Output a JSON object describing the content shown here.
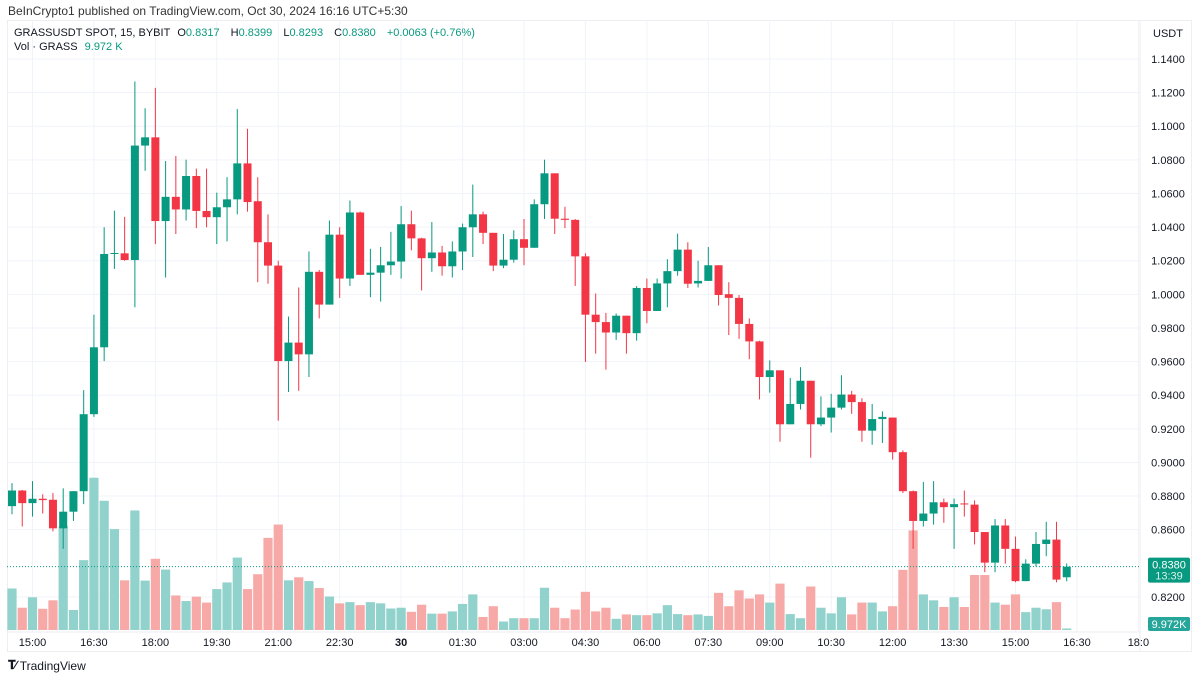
{
  "publish_line": "BeInCrypto1 published on TradingView.com, Oct 30, 2024 16:16 UTC+5:30",
  "legend": {
    "symbol": "GRASSUSDT SPOT, 15, BYBIT",
    "o_label": "O",
    "o": "0.8317",
    "h_label": "H",
    "h": "0.8399",
    "l_label": "L",
    "l": "0.8293",
    "c_label": "C",
    "c": "0.8380",
    "change": "+0.0063 (+0.76%)",
    "vol_label": "Vol · GRASS",
    "vol": "9.972 K"
  },
  "brand": "TradingView",
  "colors": {
    "up": "#089981",
    "down": "#F23645",
    "up_vol": "#92D2CC",
    "down_vol": "#F7A9A7",
    "grid": "#f0f3fa",
    "text": "#131722"
  },
  "chart_data": {
    "type": "candlestick",
    "interval": "15",
    "currency_label": "USDT",
    "ylim": [
      0.8,
      1.15
    ],
    "y_ticks": [
      "1.1400",
      "1.1200",
      "1.1000",
      "1.0800",
      "1.0600",
      "1.0400",
      "1.0200",
      "1.0000",
      "0.9800",
      "0.9600",
      "0.9400",
      "0.9200",
      "0.9000",
      "0.8800",
      "0.8600",
      "0.8200"
    ],
    "x_ticks": [
      "15:00",
      "16:30",
      "18:00",
      "19:30",
      "21:00",
      "22:30",
      "30",
      "01:30",
      "03:00",
      "04:30",
      "06:00",
      "07:30",
      "09:00",
      "10:30",
      "12:00",
      "13:30",
      "15:00",
      "16:30",
      "18:0"
    ],
    "grid": true,
    "last_price_label": "0.8380",
    "countdown_label": "13:39",
    "last_volume_label": "9.972K",
    "volume_unit": "K",
    "candle_fields": [
      "open",
      "high",
      "low",
      "close",
      "volume"
    ],
    "candles": [
      [
        0.874,
        0.8877,
        0.8692,
        0.8833,
        274
      ],
      [
        0.8833,
        0.8836,
        0.8619,
        0.8758,
        147
      ],
      [
        0.8758,
        0.8889,
        0.8678,
        0.8784,
        216
      ],
      [
        0.8784,
        0.8811,
        0.8696,
        0.8776,
        140
      ],
      [
        0.8778,
        0.8818,
        0.859,
        0.8608,
        196
      ],
      [
        0.8608,
        0.8846,
        0.8486,
        0.8707,
        686
      ],
      [
        0.8707,
        0.8829,
        0.8652,
        0.8829,
        132
      ],
      [
        0.8829,
        0.943,
        0.8752,
        0.9287,
        461
      ],
      [
        0.9287,
        0.9879,
        0.9271,
        0.9685,
        1005
      ],
      [
        0.9685,
        1.0399,
        0.9603,
        1.024,
        853
      ],
      [
        1.0242,
        1.0498,
        1.0151,
        1.0246,
        666
      ],
      [
        1.0244,
        1.0461,
        1.02,
        1.0204,
        328
      ],
      [
        1.0204,
        1.1266,
        0.9923,
        1.0885,
        789
      ],
      [
        1.0885,
        1.1107,
        1.0735,
        1.0934,
        326
      ],
      [
        1.0934,
        1.1228,
        1.0299,
        1.0436,
        470
      ],
      [
        1.0436,
        1.0793,
        1.01,
        1.058,
        399
      ],
      [
        1.058,
        1.0823,
        1.0359,
        1.0505,
        228
      ],
      [
        1.0505,
        1.0801,
        1.0439,
        1.0704,
        191
      ],
      [
        1.0704,
        1.0748,
        1.0394,
        1.0496,
        220
      ],
      [
        1.0496,
        1.0748,
        1.0399,
        1.0459,
        181
      ],
      [
        1.0459,
        1.0605,
        1.0299,
        1.0518,
        270
      ],
      [
        1.0518,
        1.0697,
        1.0315,
        1.0565,
        314
      ],
      [
        1.0565,
        1.1102,
        1.0476,
        1.0779,
        478
      ],
      [
        1.0779,
        1.0985,
        1.0492,
        1.0549,
        270
      ],
      [
        1.0554,
        1.0697,
        1.0072,
        1.031,
        368
      ],
      [
        1.031,
        1.0476,
        1.0063,
        1.0171,
        608
      ],
      [
        1.0171,
        1.02,
        0.9249,
        0.9603,
        696
      ],
      [
        0.9603,
        0.9868,
        0.9419,
        0.9713,
        328
      ],
      [
        0.9713,
        1.0041,
        0.9426,
        0.9643,
        348
      ],
      [
        0.9643,
        1.0255,
        0.9508,
        1.0134,
        323
      ],
      [
        1.0134,
        1.0145,
        0.9857,
        0.9939,
        277
      ],
      [
        0.9939,
        1.0439,
        0.9939,
        1.0355,
        221
      ],
      [
        1.0355,
        1.0399,
        0.9979,
        1.0094,
        176
      ],
      [
        1.0094,
        1.0558,
        1.005,
        1.0487,
        184
      ],
      [
        1.0487,
        1.0492,
        1.0116,
        1.0116,
        164
      ],
      [
        1.0116,
        1.0271,
        0.9983,
        1.0129,
        184
      ],
      [
        1.0129,
        1.0282,
        0.9957,
        1.0173,
        176
      ],
      [
        1.0173,
        1.0372,
        1.0116,
        1.0195,
        142
      ],
      [
        1.0195,
        1.0525,
        1.0094,
        1.0417,
        147
      ],
      [
        1.0417,
        1.0498,
        1.0262,
        1.0333,
        120
      ],
      [
        1.0333,
        1.0337,
        1.0023,
        1.0215,
        167
      ],
      [
        1.0215,
        1.043,
        1.0134,
        1.0249,
        108
      ],
      [
        1.0249,
        1.0288,
        1.0111,
        1.0167,
        108
      ],
      [
        1.0167,
        1.0315,
        1.01,
        1.0255,
        123
      ],
      [
        1.0255,
        1.0421,
        1.0145,
        1.0399,
        172
      ],
      [
        1.0399,
        1.0653,
        1.0222,
        1.0476,
        235
      ],
      [
        1.0476,
        1.0492,
        1.0299,
        1.0366,
        86
      ],
      [
        1.0366,
        1.0366,
        1.0138,
        1.0171,
        157
      ],
      [
        1.0171,
        1.0359,
        1.0156,
        1.0206,
        56
      ],
      [
        1.0206,
        1.0381,
        1.0189,
        1.0328,
        78
      ],
      [
        1.0328,
        1.0448,
        1.0173,
        1.0277,
        78
      ],
      [
        1.0277,
        1.0565,
        1.0277,
        1.0536,
        78
      ],
      [
        1.0536,
        1.0801,
        1.0448,
        1.072,
        279
      ],
      [
        1.072,
        1.072,
        1.0359,
        1.045,
        147
      ],
      [
        1.045,
        1.0521,
        1.0394,
        1.0443,
        78
      ],
      [
        1.0443,
        1.0448,
        1.005,
        1.0226,
        135
      ],
      [
        1.0226,
        1.0244,
        0.9598,
        0.9879,
        252
      ],
      [
        0.9879,
        1.0005,
        0.9647,
        0.9835,
        123
      ],
      [
        0.9835,
        0.989,
        0.9552,
        0.9773,
        147
      ],
      [
        0.9773,
        0.9886,
        0.9729,
        0.9873,
        74
      ],
      [
        0.9873,
        0.9873,
        0.9647,
        0.9769,
        103
      ],
      [
        0.9769,
        1.0049,
        0.9724,
        1.0038,
        98
      ],
      [
        1.0038,
        1.0094,
        0.9828,
        0.9901,
        98
      ],
      [
        0.9901,
        1.0094,
        0.9901,
        1.0065,
        110
      ],
      [
        1.0065,
        1.0209,
        0.9923,
        1.0138,
        164
      ],
      [
        1.0138,
        1.0361,
        1.0111,
        1.0266,
        105
      ],
      [
        1.0266,
        1.031,
        1.0038,
        1.0063,
        98
      ],
      [
        1.0065,
        1.02,
        1.0041,
        1.008,
        103
      ],
      [
        1.008,
        1.0282,
        1.008,
        1.0173,
        93
      ],
      [
        1.0173,
        1.0173,
        0.9934,
        0.9996,
        245
      ],
      [
        1.0001,
        1.0072,
        0.9758,
        0.9979,
        157
      ],
      [
        0.9979,
        0.9996,
        0.9735,
        0.9824,
        262
      ],
      [
        0.9824,
        0.9857,
        0.9614,
        0.972,
        208
      ],
      [
        0.972,
        0.9724,
        0.9375,
        0.9508,
        235
      ],
      [
        0.9508,
        0.9607,
        0.9415,
        0.9548,
        181
      ],
      [
        0.9548,
        0.9548,
        0.9123,
        0.9227,
        306
      ],
      [
        0.9227,
        0.9503,
        0.9227,
        0.9348,
        105
      ],
      [
        0.9348,
        0.9567,
        0.9315,
        0.9486,
        78
      ],
      [
        0.9486,
        0.9486,
        0.9028,
        0.9227,
        287
      ],
      [
        0.9227,
        0.9393,
        0.9216,
        0.9267,
        147
      ],
      [
        0.9267,
        0.9408,
        0.9178,
        0.9326,
        110
      ],
      [
        0.9326,
        0.9519,
        0.9315,
        0.9404,
        216
      ],
      [
        0.9404,
        0.9426,
        0.9289,
        0.9359,
        103
      ],
      [
        0.9359,
        0.9382,
        0.9123,
        0.9189,
        181
      ],
      [
        0.9189,
        0.9348,
        0.9105,
        0.9258,
        181
      ],
      [
        0.9258,
        0.9304,
        0.9116,
        0.9271,
        123
      ],
      [
        0.9267,
        0.9267,
        0.9017,
        0.9061,
        157
      ],
      [
        0.9061,
        0.9072,
        0.8818,
        0.8829,
        397
      ],
      [
        0.8829,
        0.8833,
        0.8486,
        0.8652,
        657
      ],
      [
        0.8652,
        0.8884,
        0.8619,
        0.8696,
        235
      ],
      [
        0.8696,
        0.8889,
        0.863,
        0.8763,
        196
      ],
      [
        0.8763,
        0.8785,
        0.8641,
        0.8734,
        152
      ],
      [
        0.8734,
        0.8785,
        0.8486,
        0.8752,
        216
      ],
      [
        0.8756,
        0.8833,
        0.8678,
        0.8752,
        152
      ],
      [
        0.8749,
        0.8774,
        0.8512,
        0.8586,
        363
      ],
      [
        0.8586,
        0.8586,
        0.8347,
        0.8404,
        363
      ],
      [
        0.8404,
        0.8663,
        0.8347,
        0.8625,
        181
      ],
      [
        0.8625,
        0.8663,
        0.8398,
        0.8486,
        167
      ],
      [
        0.8486,
        0.8559,
        0.8287,
        0.8294,
        235
      ],
      [
        0.8294,
        0.8424,
        0.8294,
        0.8398,
        118
      ],
      [
        0.8398,
        0.8586,
        0.8382,
        0.8515,
        147
      ],
      [
        0.8515,
        0.8647,
        0.8442,
        0.8541,
        137
      ],
      [
        0.8541,
        0.8647,
        0.8287,
        0.8303,
        184
      ],
      [
        0.8317,
        0.8399,
        0.8293,
        0.838,
        9.972
      ]
    ]
  }
}
